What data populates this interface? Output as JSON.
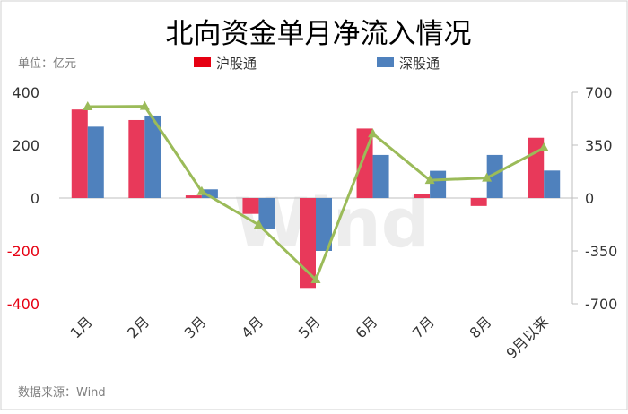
{
  "chart_data": {
    "type": "bar",
    "title": "北向资金单月净流入情况",
    "unit_label": "单位：亿元",
    "source": "数据来源：Wind",
    "watermark": "Wind",
    "categories": [
      "1月",
      "2月",
      "3月",
      "4月",
      "5月",
      "6月",
      "7月",
      "8月",
      "9月以来"
    ],
    "series": [
      {
        "name": "沪股通",
        "axis": "left",
        "color": "#e8395a",
        "values": [
          335,
          295,
          10,
          -60,
          -340,
          263,
          15,
          -30,
          228
        ]
      },
      {
        "name": "深股通",
        "axis": "left",
        "color": "#4f81bd",
        "values": [
          270,
          312,
          33,
          -118,
          -200,
          163,
          103,
          163,
          104
        ]
      },
      {
        "axis": "right",
        "type": "line",
        "color": "#9bbb59",
        "values": [
          605,
          607,
          43,
          -178,
          -540,
          426,
          118,
          133,
          332
        ]
      }
    ],
    "left_axis": {
      "ylim": [
        -400,
        400
      ],
      "ticks": [
        "400",
        "200",
        "0",
        "-200",
        "-400"
      ],
      "tick_values": [
        400,
        200,
        0,
        -200,
        -400
      ]
    },
    "right_axis": {
      "ylim": [
        -700,
        700
      ],
      "ticks": [
        "700",
        "350",
        "0",
        "-350",
        "-700"
      ],
      "tick_values": [
        700,
        350,
        0,
        -350,
        -700
      ]
    },
    "negative_tick_color": "#e60012",
    "grid": false,
    "legend_position": "top"
  }
}
